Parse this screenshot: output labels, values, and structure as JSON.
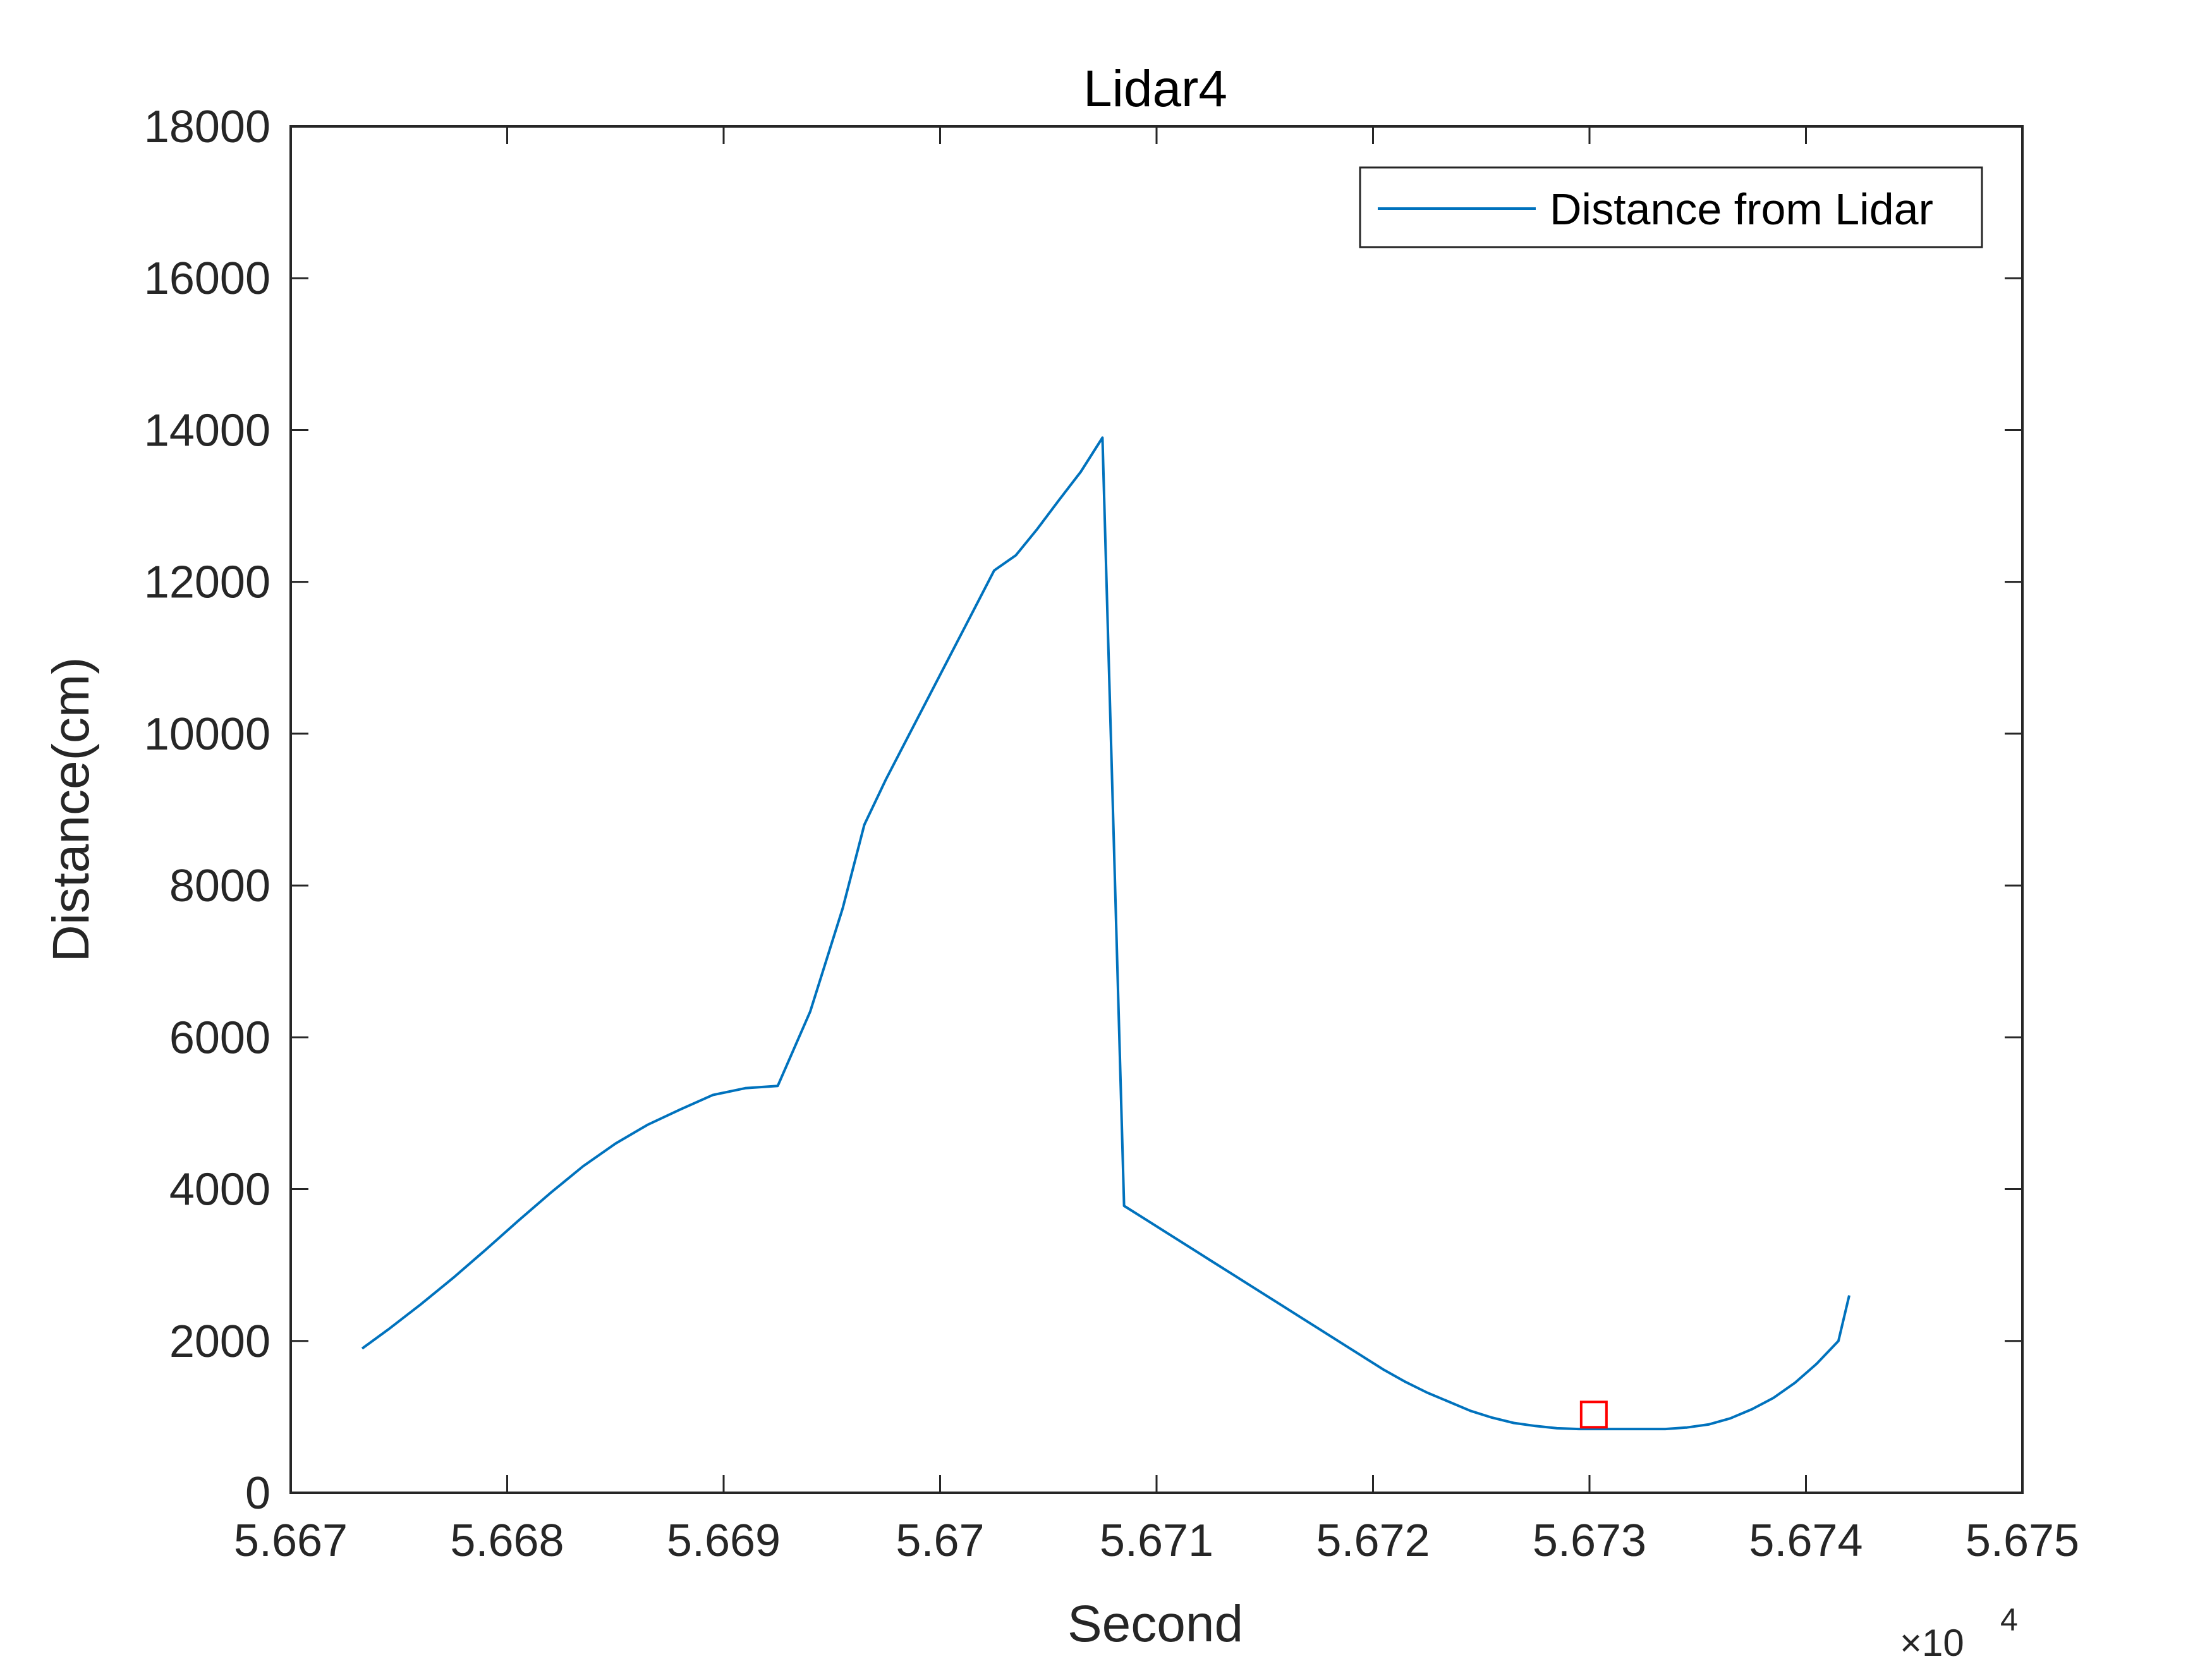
{
  "chart_data": {
    "type": "line",
    "title": "Lidar4",
    "xlabel": "Second",
    "ylabel": "Distance(cm)",
    "x_exponent_label": "×10",
    "x_exponent_power": "4",
    "xlim": [
      5.667,
      5.675
    ],
    "ylim": [
      0,
      18000
    ],
    "x_ticks": [
      5.667,
      5.668,
      5.669,
      5.67,
      5.671,
      5.672,
      5.673,
      5.674,
      5.675
    ],
    "x_tick_labels": [
      "5.667",
      "5.668",
      "5.669",
      "5.67",
      "5.671",
      "5.672",
      "5.673",
      "5.674",
      "5.675"
    ],
    "y_ticks": [
      0,
      2000,
      4000,
      6000,
      8000,
      10000,
      12000,
      14000,
      16000,
      18000
    ],
    "y_tick_labels": [
      "0",
      "2000",
      "4000",
      "6000",
      "8000",
      "10000",
      "12000",
      "14000",
      "16000",
      "18000"
    ],
    "grid": false,
    "legend_position": "top-right",
    "colors": {
      "series": "#0072BD",
      "marker": "#FF0000",
      "axes": "#262626"
    },
    "series": [
      {
        "name": "Distance from Lidar",
        "x": [
          5.66733,
          5.66745,
          5.6676,
          5.66775,
          5.6679,
          5.66805,
          5.6682,
          5.66835,
          5.6685,
          5.66865,
          5.6688,
          5.66895,
          5.6691,
          5.66925,
          5.6694,
          5.66955,
          5.66965,
          5.66975,
          5.66985,
          5.66995,
          5.67005,
          5.67015,
          5.67025,
          5.67035,
          5.67045,
          5.67055,
          5.67065,
          5.67075,
          5.67085,
          5.67095,
          5.67105,
          5.67115,
          5.67125,
          5.67135,
          5.67145,
          5.67155,
          5.67165,
          5.67175,
          5.67185,
          5.67195,
          5.67205,
          5.67215,
          5.67225,
          5.67235,
          5.67245,
          5.67255,
          5.67265,
          5.67275,
          5.67285,
          5.67295,
          5.67305,
          5.67315,
          5.67325,
          5.67335,
          5.67345,
          5.67355,
          5.67365,
          5.67375,
          5.67385,
          5.67395,
          5.67405,
          5.67415,
          5.6742
        ],
        "y": [
          1900,
          2150,
          2480,
          2830,
          3200,
          3580,
          3950,
          4300,
          4600,
          4850,
          5050,
          5240,
          5330,
          5360,
          6340,
          7700,
          8800,
          9400,
          9950,
          10500,
          11050,
          11600,
          12150,
          12350,
          12700,
          13080,
          13450,
          13900,
          3780,
          3600,
          3420,
          3240,
          3060,
          2880,
          2700,
          2520,
          2340,
          2160,
          1980,
          1800,
          1620,
          1460,
          1320,
          1200,
          1080,
          990,
          920,
          880,
          850,
          840,
          840,
          840,
          840,
          840,
          860,
          900,
          980,
          1100,
          1250,
          1450,
          1700,
          2000,
          2600
        ]
      }
    ],
    "highlight_marker": {
      "shape": "square",
      "x": 5.67302,
      "y": 1030
    }
  }
}
